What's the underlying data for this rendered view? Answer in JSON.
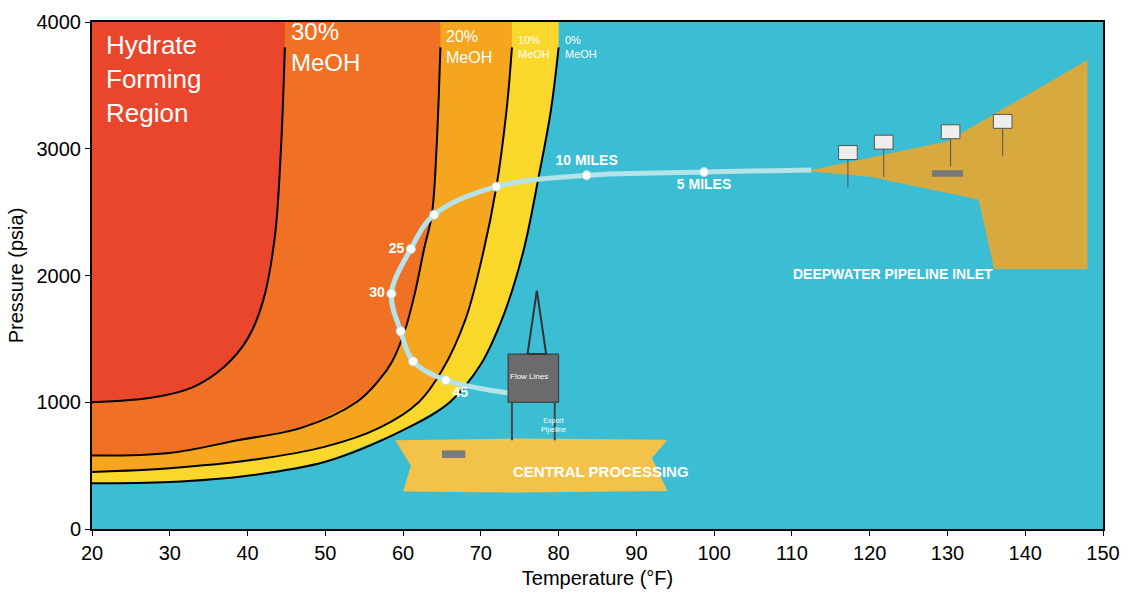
{
  "chart_data": {
    "type": "line",
    "x_label": "Temperature (°F)",
    "y_label": "Pressure (psia)",
    "xlim": [
      20,
      150
    ],
    "xticks": [
      20,
      30,
      40,
      50,
      60,
      70,
      80,
      90,
      100,
      110,
      120,
      130,
      140,
      150
    ],
    "ylim": [
      0,
      4000
    ],
    "yticks": [
      0,
      1000,
      2000,
      3000,
      4000
    ],
    "grid": false,
    "series": [
      {
        "name": "30% MeOH",
        "color": "#e9462b",
        "x": [
          20,
          28,
          33,
          37,
          40,
          42,
          43.5,
          44.3,
          44.8
        ],
        "y": [
          1000,
          1040,
          1120,
          1280,
          1500,
          1800,
          2300,
          3000,
          3800
        ]
      },
      {
        "name": "20% MeOH",
        "color": "#f07024",
        "x": [
          20,
          30,
          38.7,
          47,
          54,
          56.9,
          58.6,
          60.2,
          61.5,
          62.7,
          63.7,
          64.3,
          64.8
        ],
        "y": [
          580,
          600,
          700,
          800,
          1000,
          1174,
          1322,
          1560,
          1856,
          2209,
          2480,
          3000,
          3800
        ]
      },
      {
        "name": "10% MeOH",
        "color": "#f6a51f",
        "x": [
          20,
          30,
          40,
          50,
          57,
          62,
          65,
          68,
          70,
          72,
          73.3,
          74
        ],
        "y": [
          450,
          480,
          540,
          650,
          800,
          1000,
          1250,
          1650,
          2100,
          2700,
          3300,
          3800
        ]
      },
      {
        "name": "0% MeOH",
        "color": "#f9d82b",
        "x": [
          20,
          30,
          40,
          50,
          60,
          66,
          70,
          73,
          75.5,
          77.5,
          79,
          80
        ],
        "y": [
          360,
          370,
          420,
          530,
          780,
          1000,
          1300,
          1700,
          2200,
          2800,
          3300,
          3800
        ]
      }
    ],
    "pipeline": {
      "color": "#b4e3ea",
      "x": [
        112.5,
        98.7,
        83.6,
        72,
        64,
        61,
        58.5,
        59.7,
        61.3,
        65.5,
        79.3
      ],
      "y": [
        2833,
        2816,
        2791,
        2701,
        2480,
        2209,
        1856,
        1560,
        1322,
        1174,
        1026
      ]
    },
    "pipeline_points": {
      "marker": "circle",
      "color": "#ffffff",
      "x": [
        98.7,
        83.6,
        72,
        64,
        61,
        58.5,
        59.7,
        61.3,
        65.5
      ],
      "y": [
        2816,
        2791,
        2701,
        2480,
        2209,
        1856,
        1560,
        1322,
        1174
      ],
      "labels": [
        "5 MILES",
        "10 MILES",
        null,
        null,
        "25",
        "30",
        null,
        null,
        "45"
      ]
    },
    "annotations": [
      {
        "text": "Hydrate Forming Region",
        "x": 21.5,
        "y": 3950
      },
      {
        "text": "DEEPWATER PIPELINE INLET",
        "x": 123,
        "y": 2010
      },
      {
        "text": "CENTRAL PROCESSING",
        "x": 85.4,
        "y": 450
      },
      {
        "text": "Flow Lines",
        "x": 76.2,
        "y": 1207
      },
      {
        "text": "Export Pipeline",
        "x": 79.3,
        "y": 820
      }
    ]
  }
}
